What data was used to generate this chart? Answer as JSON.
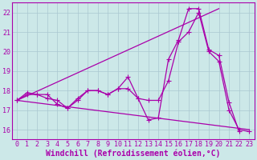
{
  "xlabel": "Windchill (Refroidissement éolien,°C)",
  "xlim_min": -0.5,
  "xlim_max": 23.5,
  "ylim_min": 15.5,
  "ylim_max": 22.5,
  "xticks": [
    0,
    1,
    2,
    3,
    4,
    5,
    6,
    7,
    8,
    9,
    10,
    11,
    12,
    13,
    14,
    15,
    16,
    17,
    18,
    19,
    20,
    21,
    22,
    23
  ],
  "yticks": [
    16,
    17,
    18,
    19,
    20,
    21,
    22
  ],
  "bg_color": "#cce8e8",
  "grid_color": "#aac8d0",
  "line_color": "#aa00aa",
  "series": [
    {
      "x": [
        0,
        1,
        2,
        3,
        4,
        5,
        6,
        7,
        8,
        9,
        10,
        11,
        12,
        13,
        14,
        15,
        16,
        17,
        18,
        19,
        20,
        21,
        22,
        23
      ],
      "y": [
        17.5,
        17.9,
        17.8,
        17.8,
        17.3,
        17.1,
        17.5,
        18.0,
        18.0,
        17.8,
        18.1,
        18.7,
        17.6,
        16.5,
        16.6,
        19.6,
        20.6,
        22.2,
        22.2,
        20.1,
        19.8,
        17.4,
        15.9,
        null
      ]
    },
    {
      "x": [
        0,
        1,
        2,
        3,
        4,
        5,
        6,
        7,
        8,
        9,
        10,
        11,
        12,
        13,
        14,
        15,
        16,
        17,
        18,
        19,
        20,
        21,
        22,
        23
      ],
      "y": [
        17.5,
        17.8,
        17.8,
        17.6,
        17.5,
        17.1,
        17.6,
        18.0,
        18.0,
        17.8,
        18.1,
        18.1,
        17.6,
        17.5,
        17.5,
        18.5,
        20.5,
        21.0,
        22.0,
        20.0,
        19.5,
        17.0,
        16.0,
        15.9
      ]
    },
    {
      "x": [
        0,
        23
      ],
      "y": [
        17.5,
        16.0
      ]
    },
    {
      "x": [
        0,
        20
      ],
      "y": [
        17.5,
        22.2
      ]
    }
  ],
  "font_size": 7,
  "tick_font_size": 6,
  "marker_size": 2.5
}
